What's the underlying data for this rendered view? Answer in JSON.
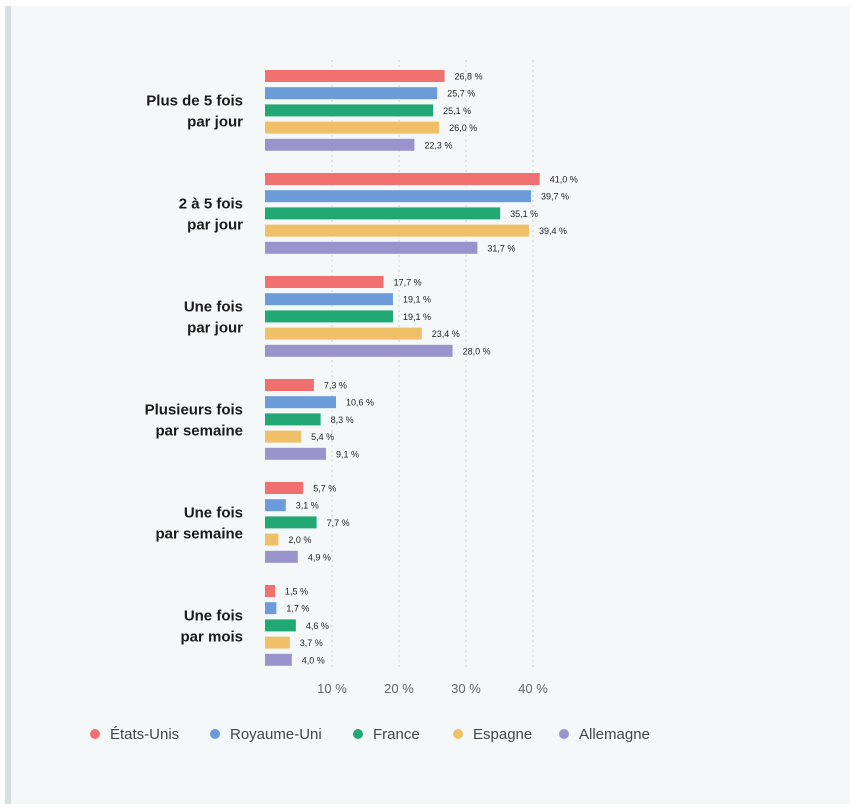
{
  "chart_data": {
    "type": "bar",
    "orientation": "horizontal",
    "categories": [
      [
        "Plus de 5 fois",
        "par jour"
      ],
      [
        "2 à 5 fois",
        "par jour"
      ],
      [
        "Une fois",
        "par jour"
      ],
      [
        "Plusieurs fois",
        "par semaine"
      ],
      [
        "Une fois",
        "par semaine"
      ],
      [
        "Une fois",
        "par mois"
      ]
    ],
    "series": [
      {
        "name": "États-Unis",
        "color": "#f07070",
        "values": [
          26.8,
          41.0,
          17.7,
          7.3,
          5.7,
          1.5
        ],
        "labels": [
          "26,8 %",
          "41,0 %",
          "17,7 %",
          "7,3 %",
          "5,7 %",
          "1,5 %"
        ]
      },
      {
        "name": "Royaume-Uni",
        "color": "#6b9bd8",
        "values": [
          25.7,
          39.7,
          19.1,
          10.6,
          3.1,
          1.7
        ],
        "labels": [
          "25,7 %",
          "39,7 %",
          "19,1 %",
          "10,6 %",
          "3,1 %",
          "1,7 %"
        ]
      },
      {
        "name": "France",
        "color": "#22a874",
        "values": [
          25.1,
          35.1,
          19.1,
          8.3,
          7.7,
          4.6
        ],
        "labels": [
          "25,1 %",
          "35,1 %",
          "19,1 %",
          "8,3 %",
          "7,7 %",
          "4,6 %"
        ]
      },
      {
        "name": "Espagne",
        "color": "#f0c068",
        "values": [
          26.0,
          39.4,
          23.4,
          5.4,
          2.0,
          3.7
        ],
        "labels": [
          "26,0 %",
          "39,4 %",
          "23,4 %",
          "5,4 %",
          "2,0 %",
          "3,7 %"
        ]
      },
      {
        "name": "Allemagne",
        "color": "#9a94cc",
        "values": [
          22.3,
          31.7,
          28.0,
          9.1,
          4.9,
          4.0
        ],
        "labels": [
          "22,3 %",
          "31,7 %",
          "28,0 %",
          "9,1 %",
          "4,9 %",
          "4,0 %"
        ]
      }
    ],
    "x_ticks": [
      10,
      20,
      30,
      40
    ],
    "x_tick_labels": [
      "10 %",
      "20 %",
      "30 %",
      "40 %"
    ],
    "xlim": [
      0,
      45
    ],
    "grid": "vertical-dotted",
    "legend_position": "bottom"
  }
}
